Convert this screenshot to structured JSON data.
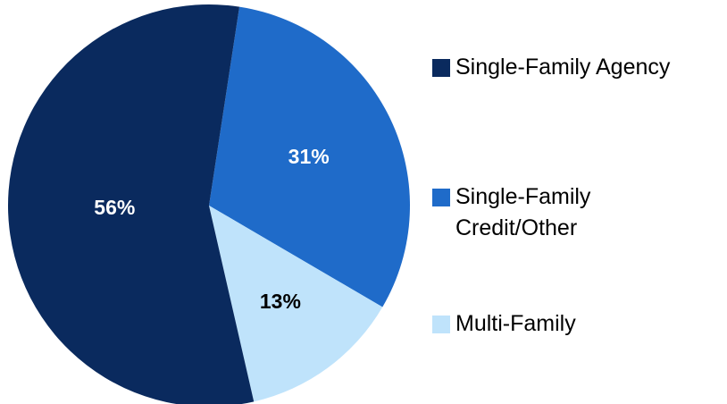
{
  "chart_data": {
    "type": "pie",
    "categories": [
      "Single-Family Agency",
      "Single-Family Credit/Other",
      "Multi-Family"
    ],
    "values": [
      56,
      31,
      13
    ],
    "value_labels": [
      "56%",
      "31%",
      "13%"
    ],
    "colors": [
      "#0a2a5e",
      "#1f6bc9",
      "#bfe3fb"
    ]
  }
}
